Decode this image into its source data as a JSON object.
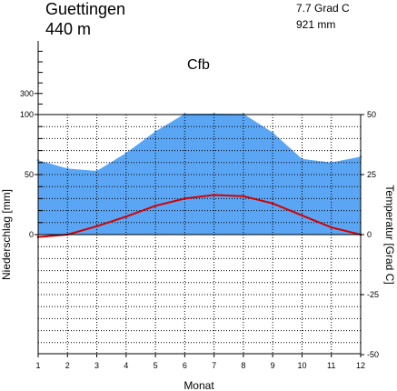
{
  "station": {
    "name": "Guettingen",
    "elevation": "440 m",
    "mean_temperature": "7.7 Grad C",
    "annual_precipitation": "921 mm",
    "climate_class": "Cfb"
  },
  "chart_data": {
    "type": "area",
    "title": "",
    "xlabel": "Monat",
    "ylabel_left": "Niederschlag [mm]",
    "ylabel_right": "Temperatur [Grad C]",
    "categories": [
      "1",
      "2",
      "3",
      "4",
      "5",
      "6",
      "7",
      "8",
      "9",
      "10",
      "11",
      "12"
    ],
    "series": [
      {
        "name": "Niederschlag",
        "axis": "left",
        "unit": "mm",
        "color": "#5aa6f5",
        "values": [
          62,
          55,
          53,
          68,
          86,
          108,
          109,
          107,
          85,
          63,
          60,
          65
        ]
      },
      {
        "name": "Temperatur",
        "axis": "right",
        "unit": "Grad C",
        "color": "#d40000",
        "values": [
          -1,
          0,
          3.5,
          7.5,
          12,
          15,
          16.5,
          16,
          13,
          8,
          3,
          0
        ]
      }
    ],
    "left_axis": {
      "ticks": [
        300,
        100,
        50,
        0
      ],
      "linear_range": [
        0,
        100
      ],
      "compressed_above": 100
    },
    "right_axis": {
      "ticks": [
        50,
        25,
        0,
        -25,
        -50
      ],
      "range": [
        -50,
        50
      ]
    },
    "x_ticks": [
      "1",
      "2",
      "3",
      "4",
      "5",
      "6",
      "7",
      "8",
      "9",
      "10",
      "11",
      "12"
    ],
    "grid": true,
    "legend": "none"
  }
}
